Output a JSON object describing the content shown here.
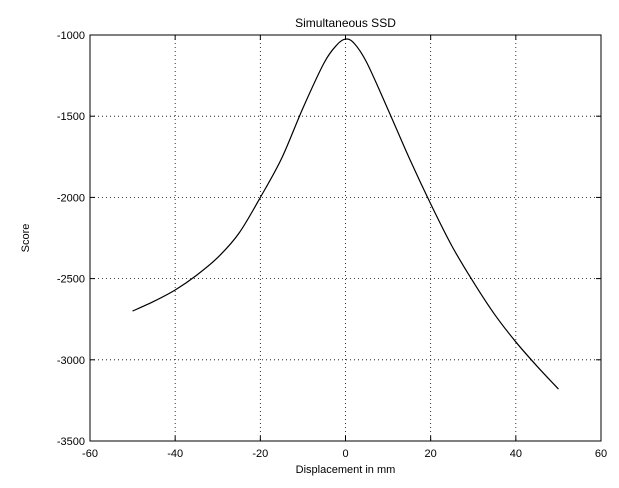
{
  "chart_data": {
    "type": "line",
    "title": "Simultaneous SSD",
    "xlabel": "Displacement in mm",
    "ylabel": "Score",
    "xlim": [
      -60,
      60
    ],
    "ylim": [
      -3500,
      -1000
    ],
    "xticks": [
      -60,
      -40,
      -20,
      0,
      20,
      40,
      60
    ],
    "yticks": [
      -1000,
      -1500,
      -2000,
      -2500,
      -3000,
      -3500
    ],
    "xtick_labels": [
      "-60",
      "-40",
      "-20",
      "0",
      "20",
      "40",
      "60"
    ],
    "ytick_labels": [
      "-1000",
      "-1500",
      "-2000",
      "-2500",
      "-3000",
      "-3500"
    ],
    "grid": true,
    "line_color": "#000000",
    "series": [
      {
        "x": [
          -50,
          -45,
          -40,
          -35,
          -30,
          -25,
          -20,
          -15,
          -10,
          -5,
          -2,
          0,
          2,
          5,
          10,
          15,
          20,
          25,
          30,
          35,
          40,
          45,
          50
        ],
        "values": [
          -2700,
          -2640,
          -2570,
          -2480,
          -2370,
          -2220,
          -2000,
          -1760,
          -1450,
          -1170,
          -1060,
          -1025,
          -1050,
          -1170,
          -1460,
          -1760,
          -2040,
          -2300,
          -2520,
          -2720,
          -2890,
          -3040,
          -3180
        ]
      }
    ]
  }
}
